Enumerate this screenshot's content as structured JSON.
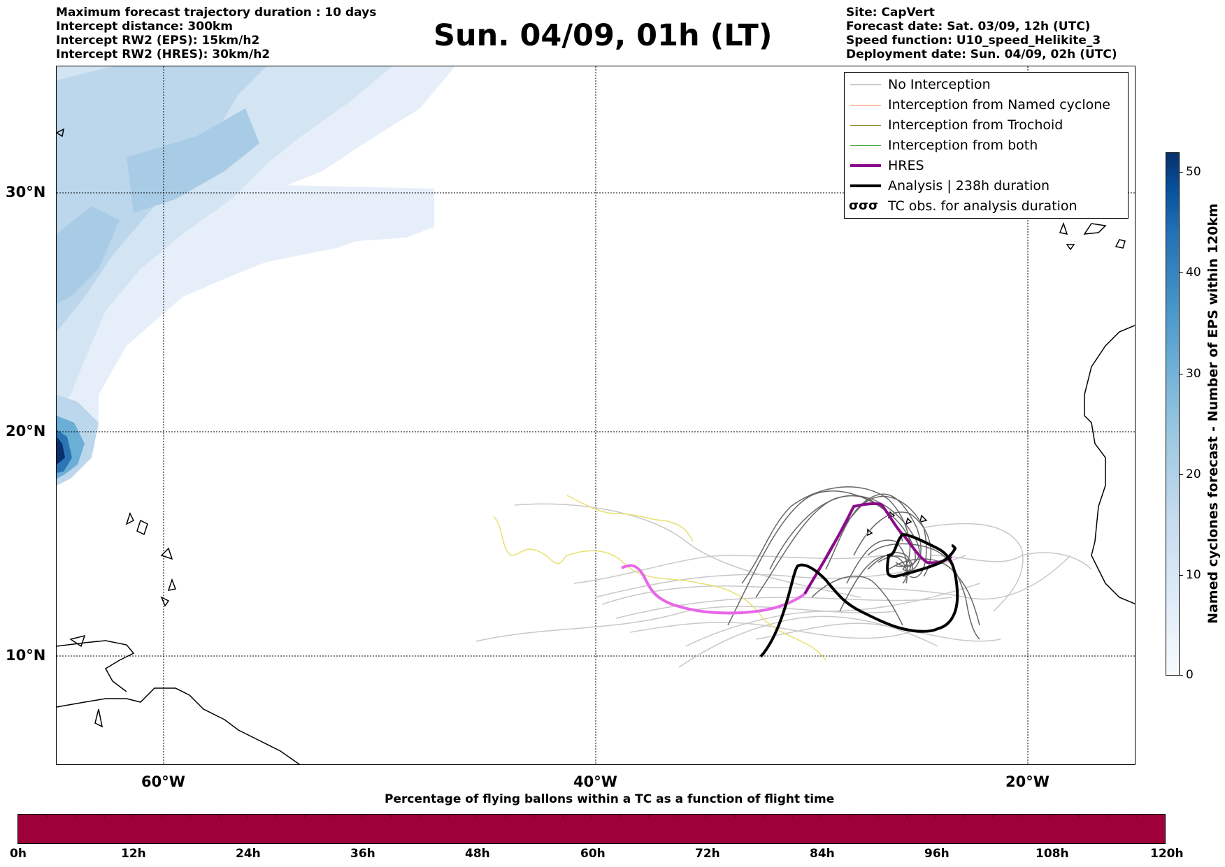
{
  "header": {
    "left_lines": [
      "Maximum forecast trajectory duration : 10 days",
      "Intercept distance: 300km",
      "Intercept RW2 (EPS):  15km/h2",
      "Intercept RW2 (HRES): 30km/h2"
    ],
    "title": "Sun. 04/09, 01h (LT)",
    "right_lines": [
      "Site: CapVert",
      "Forecast date: Sat. 03/09, 12h (UTC)",
      "Speed function: U10_speed_Helikite_3",
      "Deployment date: Sun. 04/09, 02h (UTC)"
    ]
  },
  "map": {
    "lat_labels": [
      "30°N",
      "20°N",
      "10°N"
    ],
    "lon_labels": [
      "60°W",
      "40°W",
      "20°W"
    ],
    "colors": {
      "no_interception_dark": "#666666",
      "no_interception_light": "#c8c8c8",
      "yellow_track": "#e8e070",
      "hres_main": "#8b0a8b",
      "hres_light": "#e866e8",
      "analysis": "#000000"
    }
  },
  "legend": {
    "items": [
      {
        "label": "No Interception",
        "color": "#888888"
      },
      {
        "label": "Interception from Named cyclone",
        "color": "#ff7f50"
      },
      {
        "label": "Interception from Trochoid",
        "color": "#8b8b2a"
      },
      {
        "label": "Interception from both",
        "color": "#33a02c"
      },
      {
        "label": "HRES",
        "color": "#8b0a8b"
      },
      {
        "label": "Analysis | 238h duration",
        "color": "#000000"
      },
      {
        "label": "TC obs. for analysis duration",
        "color": "#000000",
        "icon": "cyclone-symbols-icon",
        "symbols": "σσσ"
      }
    ]
  },
  "colorbar_right": {
    "ticks": [
      "50",
      "40",
      "30",
      "20",
      "10",
      "0"
    ],
    "label": "Named cyclones forecast - Number of EPS within 120km"
  },
  "flight_bar": {
    "title": "Percentage of flying ballons within a TC as a function of flight time",
    "ticks": [
      "0h",
      "12h",
      "24h",
      "36h",
      "48h",
      "60h",
      "72h",
      "84h",
      "96h",
      "108h",
      "120h"
    ],
    "color": "#9e003a"
  }
}
